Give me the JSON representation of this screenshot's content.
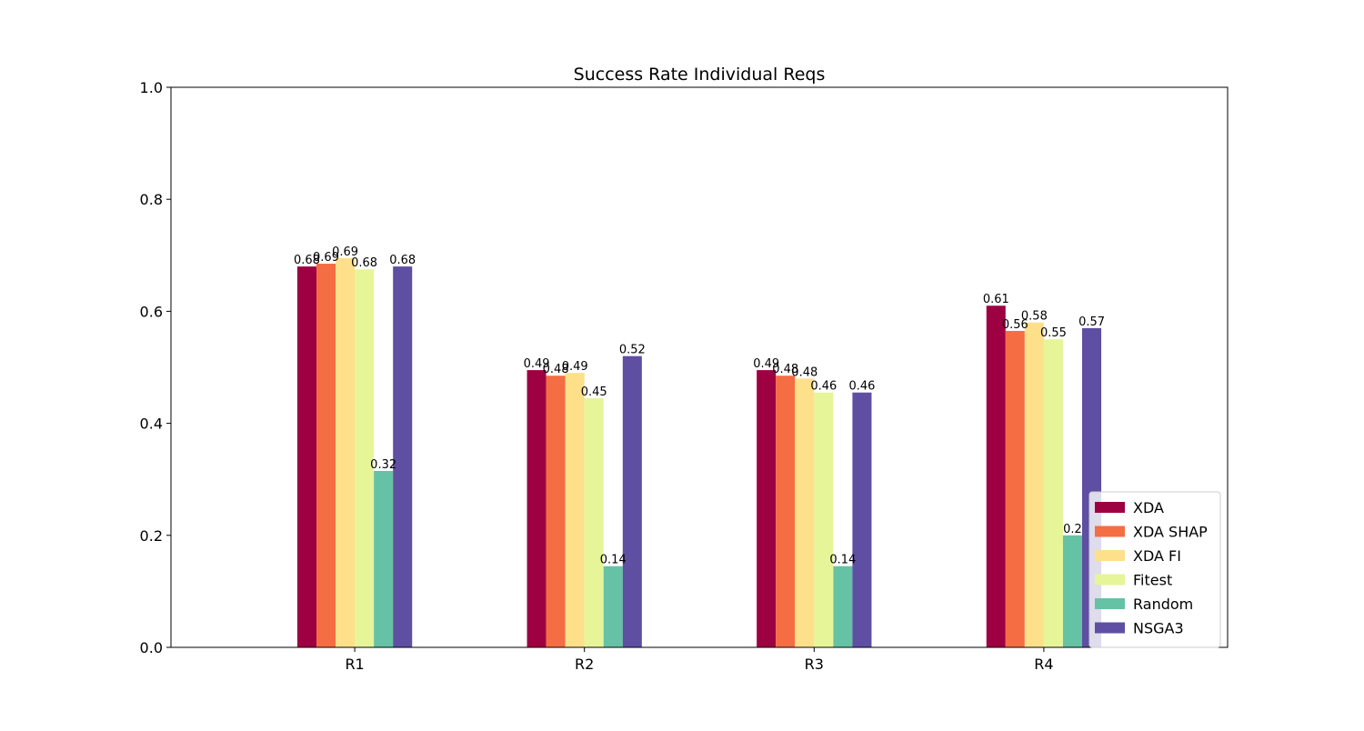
{
  "chart_data": {
    "type": "bar",
    "title": "Success Rate Individual Reqs",
    "xlabel": "",
    "ylabel": "",
    "ylim": [
      0,
      1.0
    ],
    "yticks": [
      "0.0",
      "0.2",
      "0.4",
      "0.6",
      "0.8",
      "1.0"
    ],
    "categories": [
      "R1",
      "R2",
      "R3",
      "R4"
    ],
    "legend_position": "lower-right",
    "grid": false,
    "series": [
      {
        "name": "XDA",
        "color": "#9e0142",
        "values": [
          0.68,
          0.495,
          0.495,
          0.61
        ],
        "labels": [
          "0.68",
          "0.49",
          "0.49",
          "0.61"
        ]
      },
      {
        "name": "XDA SHAP",
        "color": "#f46d43",
        "values": [
          0.685,
          0.485,
          0.485,
          0.565
        ],
        "labels": [
          "0.69",
          "0.48",
          "0.48",
          "0.56"
        ]
      },
      {
        "name": "XDA FI",
        "color": "#fee08b",
        "values": [
          0.695,
          0.49,
          0.48,
          0.58
        ],
        "labels": [
          "0.69",
          "0.49",
          "0.48",
          "0.58"
        ]
      },
      {
        "name": "Fitest",
        "color": "#e6f598",
        "values": [
          0.675,
          0.445,
          0.455,
          0.55
        ],
        "labels": [
          "0.68",
          "0.45",
          "0.46",
          "0.55"
        ]
      },
      {
        "name": "Random",
        "color": "#66c2a5",
        "values": [
          0.315,
          0.145,
          0.145,
          0.2
        ],
        "labels": [
          "0.32",
          "0.14",
          "0.14",
          "0.2"
        ]
      },
      {
        "name": "NSGA3",
        "color": "#5e4fa2",
        "values": [
          0.68,
          0.52,
          0.455,
          0.57
        ],
        "labels": [
          "0.68",
          "0.52",
          "0.46",
          "0.57"
        ]
      }
    ]
  }
}
